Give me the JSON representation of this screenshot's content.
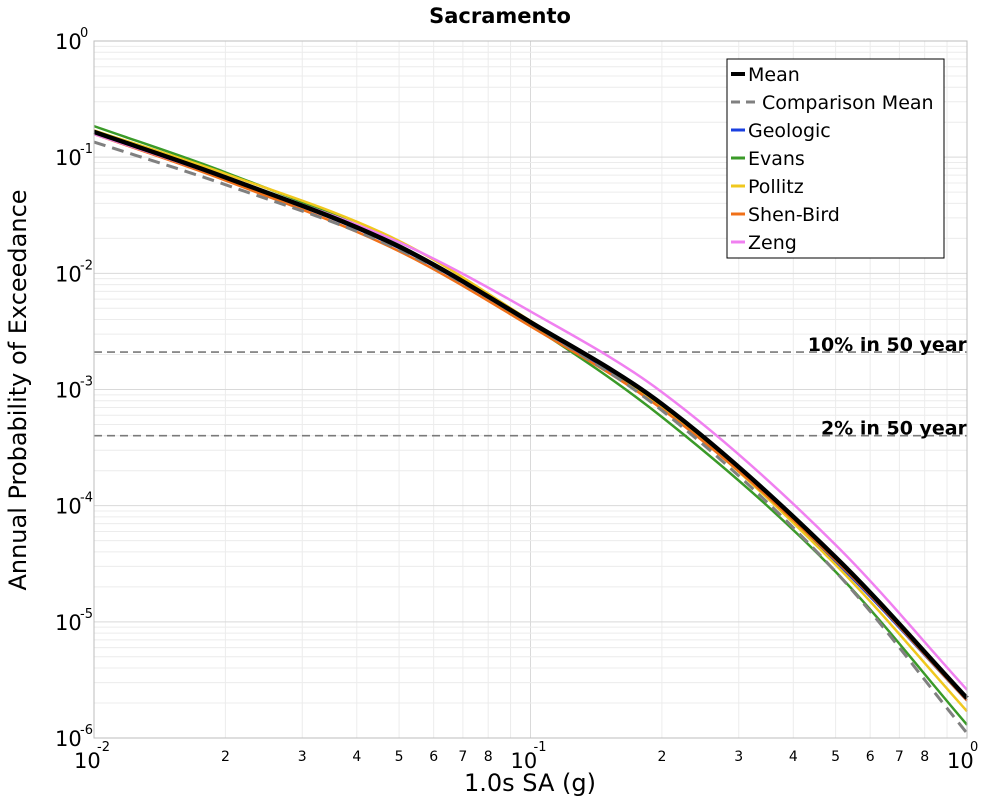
{
  "chart_data": {
    "type": "line",
    "title": "Sacramento",
    "xlabel": "1.0s SA (g)",
    "ylabel": "Annual Probability of Exceedance",
    "x_scale": "log",
    "y_scale": "log",
    "xlim": [
      0.01,
      1.0
    ],
    "ylim": [
      1e-06,
      1.0
    ],
    "grid": true,
    "legend_position": "top-right",
    "x_ticks": [
      {
        "base": "10",
        "exp": "-2"
      },
      {
        "base": "10",
        "exp": "-1"
      },
      {
        "base": "10",
        "exp": "0"
      }
    ],
    "y_ticks": [
      {
        "base": "10",
        "exp": "0"
      },
      {
        "base": "10",
        "exp": "-1"
      },
      {
        "base": "10",
        "exp": "-2"
      },
      {
        "base": "10",
        "exp": "-3"
      },
      {
        "base": "10",
        "exp": "-4"
      },
      {
        "base": "10",
        "exp": "-5"
      },
      {
        "base": "10",
        "exp": "-6"
      }
    ],
    "x_minor_labels": [
      "2",
      "3",
      "4",
      "5",
      "6",
      "7",
      "8"
    ],
    "x": [
      0.01,
      0.02,
      0.05,
      0.1,
      0.2,
      0.5,
      1.0
    ],
    "series": [
      {
        "name": "Mean",
        "color": "#000000",
        "style": "solid",
        "width": 4.5,
        "values": [
          0.165,
          0.067,
          0.017,
          0.0038,
          0.00075,
          3.6e-05,
          2.2e-06
        ]
      },
      {
        "name": "Comparison Mean",
        "color": "#808080",
        "style": "dashed",
        "width": 3,
        "values": [
          0.135,
          0.058,
          0.016,
          0.0037,
          0.00066,
          2.7e-05,
          1.1e-06
        ]
      },
      {
        "name": "Geologic",
        "color": "#1a3fe0",
        "style": "solid",
        "width": 2.5,
        "values": [
          0.165,
          0.066,
          0.0165,
          0.0037,
          0.00071,
          3.3e-05,
          2.1e-06
        ]
      },
      {
        "name": "Evans",
        "color": "#3a9a28",
        "style": "solid",
        "width": 2.5,
        "values": [
          0.185,
          0.074,
          0.0175,
          0.0036,
          0.00058,
          2.7e-05,
          1.3e-06
        ]
      },
      {
        "name": "Pollitz",
        "color": "#f0c81e",
        "style": "solid",
        "width": 2.5,
        "values": [
          0.17,
          0.072,
          0.019,
          0.0039,
          0.00071,
          3.1e-05,
          1.7e-06
        ]
      },
      {
        "name": "Shen-Bird",
        "color": "#f07018",
        "style": "solid",
        "width": 2.5,
        "values": [
          0.158,
          0.063,
          0.0155,
          0.0035,
          0.00068,
          3.4e-05,
          2.1e-06
        ]
      },
      {
        "name": "Zeng",
        "color": "#f080f0",
        "style": "solid",
        "width": 2.5,
        "values": [
          0.158,
          0.066,
          0.0185,
          0.0047,
          0.00095,
          4.6e-05,
          2.6e-06
        ]
      }
    ],
    "reference_lines": [
      {
        "label": "10% in 50 year",
        "y": 0.0021
      },
      {
        "label": "2% in 50 year",
        "y": 0.0004
      }
    ]
  }
}
